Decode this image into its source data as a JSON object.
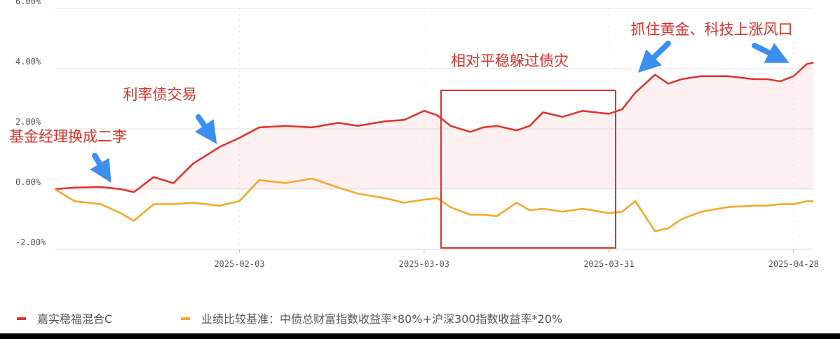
{
  "chart_data": {
    "type": "line",
    "annotations": [
      "基金经理换成二李",
      "利率债交易",
      "相对平稳躲过债灾",
      "抓住黄金、科技上涨风口"
    ],
    "x": [
      "2025-01-06",
      "2025-01-09",
      "2025-01-13",
      "2025-01-16",
      "2025-01-18",
      "2025-01-21",
      "2025-01-24",
      "2025-01-27",
      "2025-01-31",
      "2025-02-03",
      "2025-02-06",
      "2025-02-10",
      "2025-02-14",
      "2025-02-18",
      "2025-02-21",
      "2025-02-25",
      "2025-02-28",
      "2025-03-03",
      "2025-03-05",
      "2025-03-07",
      "2025-03-10",
      "2025-03-12",
      "2025-03-14",
      "2025-03-17",
      "2025-03-19",
      "2025-03-21",
      "2025-03-24",
      "2025-03-27",
      "2025-03-31",
      "2025-04-02",
      "2025-04-04",
      "2025-04-07",
      "2025-04-09",
      "2025-04-11",
      "2025-04-14",
      "2025-04-18",
      "2025-04-22",
      "2025-04-24",
      "2025-04-26",
      "2025-04-28",
      "2025-04-30",
      "2025-05-01"
    ],
    "series": [
      {
        "name": "嘉实稳福混合C",
        "color": "#e0312b",
        "values": [
          0,
          0.05,
          0.07,
          0,
          -0.1,
          0.4,
          0.2,
          0.85,
          1.4,
          1.7,
          2.05,
          2.1,
          2.05,
          2.2,
          2.1,
          2.25,
          2.3,
          2.6,
          2.45,
          2.1,
          1.9,
          2.05,
          2.1,
          1.95,
          2.1,
          2.55,
          2.4,
          2.6,
          2.5,
          2.65,
          3.2,
          3.8,
          3.5,
          3.65,
          3.75,
          3.75,
          3.65,
          3.65,
          3.58,
          3.75,
          4.15,
          4.2
        ]
      },
      {
        "name": "业绩比较基准：中债总财富指数收益率*80%+沪深300指数收益率*20%",
        "color": "#f5a623",
        "values": [
          0,
          -0.4,
          -0.5,
          -0.8,
          -1.05,
          -0.5,
          -0.5,
          -0.45,
          -0.55,
          -0.4,
          0.3,
          0.2,
          0.35,
          0.05,
          -0.15,
          -0.3,
          -0.45,
          -0.35,
          -0.3,
          -0.6,
          -0.85,
          -0.85,
          -0.9,
          -0.45,
          -0.7,
          -0.65,
          -0.75,
          -0.65,
          -0.8,
          -0.75,
          -0.4,
          -1.4,
          -1.3,
          -1.0,
          -0.75,
          -0.6,
          -0.55,
          -0.55,
          -0.5,
          -0.5,
          -0.4,
          -0.4
        ]
      }
    ],
    "xlim": [
      "2025-01-06",
      "2025-05-01"
    ],
    "xticks": [
      "2025-02-03",
      "2025-03-03",
      "2025-03-31",
      "2025-04-28"
    ],
    "ylim": [
      -2,
      6
    ],
    "yticks": [
      {
        "value": -2,
        "label": "-2.00%"
      },
      {
        "value": 0,
        "label": "0.00%"
      },
      {
        "value": 2,
        "label": "2.00%"
      },
      {
        "value": 4,
        "label": "4.00%"
      },
      {
        "value": 6,
        "label": "6.00%"
      }
    ],
    "grid": true,
    "legend": "bottom"
  }
}
